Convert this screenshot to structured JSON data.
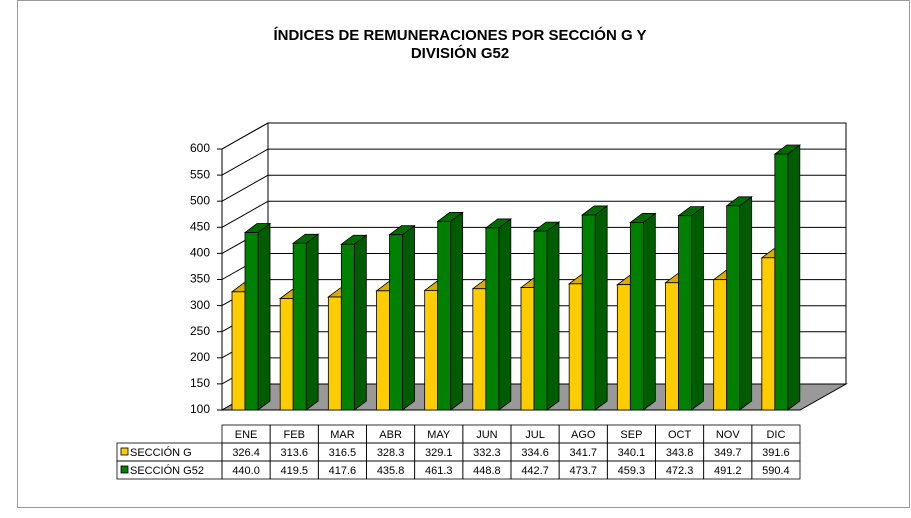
{
  "chart_data": {
    "type": "bar3d",
    "title": [
      "ÍNDICES DE REMUNERACIONES POR SECCIÓN G Y",
      "DIVISIÓN G52"
    ],
    "categories": [
      "ENE",
      "FEB",
      "MAR",
      "ABR",
      "MAY",
      "JUN",
      "JUL",
      "AGO",
      "SEP",
      "OCT",
      "NOV",
      "DIC"
    ],
    "series": [
      {
        "name": "SECCIÓN G",
        "color": "#ffcc00",
        "values": [
          326.4,
          313.6,
          316.5,
          328.3,
          329.1,
          332.3,
          334.6,
          341.7,
          340.1,
          343.8,
          349.7,
          391.6
        ],
        "value_labels": [
          "326.4",
          "313.6",
          "316.5",
          "328.3",
          "329.1",
          "332.3",
          "334.6",
          "341.7",
          "340.1",
          "343.8",
          "349.7",
          "391.6"
        ]
      },
      {
        "name": "SECCIÓN G52",
        "color": "#008000",
        "values": [
          440.0,
          419.5,
          417.6,
          435.8,
          461.3,
          448.8,
          442.7,
          473.7,
          459.3,
          472.3,
          491.2,
          590.4
        ],
        "value_labels": [
          "440.0",
          "419.5",
          "417.6",
          "435.8",
          "461.3",
          "448.8",
          "442.7",
          "473.7",
          "459.3",
          "472.3",
          "491.2",
          "590.4"
        ]
      }
    ],
    "ylim": [
      100,
      600
    ],
    "yticks": [
      100,
      150,
      200,
      250,
      300,
      350,
      400,
      450,
      500,
      550,
      600
    ],
    "grid": true
  }
}
